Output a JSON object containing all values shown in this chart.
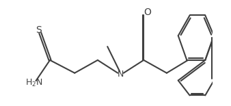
{
  "bg_color": "#ffffff",
  "line_color": "#404040",
  "text_color": "#404040",
  "lw": 1.5,
  "fs": 9,
  "figsize": [
    3.38,
    1.55
  ],
  "dpi": 100,
  "xlim": [
    -0.5,
    9.5
  ],
  "ylim": [
    -0.2,
    5.2
  ]
}
